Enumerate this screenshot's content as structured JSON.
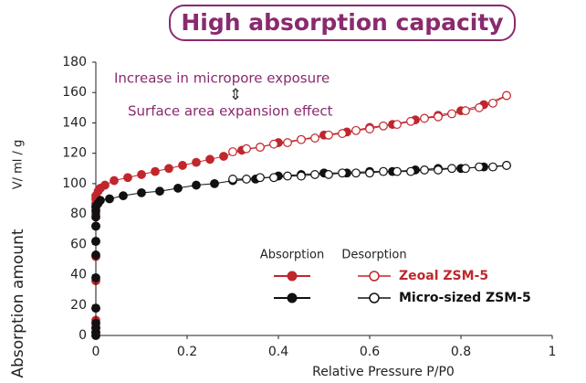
{
  "chart_data": {
    "type": "scatter",
    "title": "High absorption capacity",
    "annotations": [
      "Increase in micropore exposure",
      "Surface area expansion effect"
    ],
    "xlabel": "Relative Pressure  P/P0",
    "ylabel": "Absorption amount",
    "yunit": "V/ ml / g",
    "legend_headers": [
      "Absorption",
      "Desorption"
    ],
    "xlim": [
      0,
      1
    ],
    "xticks": [
      0,
      0.2,
      0.4,
      0.6,
      0.8,
      1
    ],
    "ylim": [
      0,
      180
    ],
    "yticks": [
      0,
      20,
      40,
      60,
      80,
      100,
      120,
      140,
      160,
      180
    ],
    "series": [
      {
        "name": "Zeoal ZSM-5",
        "color": "#c0272d",
        "adsorption": {
          "x": [
            0,
            0,
            0,
            0,
            0,
            0,
            0,
            0,
            0,
            0,
            0,
            0,
            0,
            0,
            0.005,
            0.01,
            0.02,
            0.04,
            0.07,
            0.1,
            0.13,
            0.16,
            0.19,
            0.22,
            0.25,
            0.28,
            0.32,
            0.36,
            0.4,
            0.45,
            0.5,
            0.55,
            0.6,
            0.65,
            0.7,
            0.75,
            0.8,
            0.85,
            0.9
          ],
          "values": [
            0,
            2,
            5,
            10,
            18,
            36,
            52,
            62,
            72,
            80,
            84,
            87,
            90,
            92,
            95,
            97,
            99,
            102,
            104,
            106,
            108,
            110,
            112,
            114,
            116,
            118,
            122,
            124,
            127,
            129,
            132,
            134,
            137,
            139,
            142,
            145,
            148,
            152,
            158
          ]
        },
        "desorption": {
          "x": [
            0.3,
            0.33,
            0.36,
            0.39,
            0.42,
            0.45,
            0.48,
            0.51,
            0.54,
            0.57,
            0.6,
            0.63,
            0.66,
            0.69,
            0.72,
            0.75,
            0.78,
            0.81,
            0.84,
            0.87,
            0.9
          ],
          "values": [
            121,
            123,
            124,
            126,
            127,
            129,
            130,
            132,
            133,
            135,
            136,
            138,
            139,
            141,
            143,
            144,
            146,
            148,
            150,
            153,
            158
          ]
        }
      },
      {
        "name": "Micro-sized ZSM-5",
        "color": "#111111",
        "adsorption": {
          "x": [
            0,
            0,
            0,
            0,
            0,
            0,
            0,
            0,
            0,
            0,
            0,
            0,
            0.005,
            0.01,
            0.03,
            0.06,
            0.1,
            0.14,
            0.18,
            0.22,
            0.26,
            0.3,
            0.35,
            0.4,
            0.45,
            0.5,
            0.55,
            0.6,
            0.65,
            0.7,
            0.75,
            0.8,
            0.85,
            0.9
          ],
          "values": [
            0,
            2,
            5,
            8,
            18,
            38,
            53,
            62,
            72,
            78,
            82,
            85,
            87,
            89,
            90,
            92,
            94,
            95,
            97,
            99,
            100,
            102,
            103,
            105,
            106,
            107,
            107,
            108,
            108,
            109,
            110,
            110,
            111,
            112
          ]
        },
        "desorption": {
          "x": [
            0.3,
            0.33,
            0.36,
            0.39,
            0.42,
            0.45,
            0.48,
            0.51,
            0.54,
            0.57,
            0.6,
            0.63,
            0.66,
            0.69,
            0.72,
            0.75,
            0.78,
            0.81,
            0.84,
            0.87,
            0.9
          ],
          "values": [
            103,
            103,
            104,
            104,
            105,
            105,
            106,
            106,
            107,
            107,
            107,
            108,
            108,
            108,
            109,
            109,
            110,
            110,
            111,
            111,
            112
          ]
        }
      }
    ]
  }
}
